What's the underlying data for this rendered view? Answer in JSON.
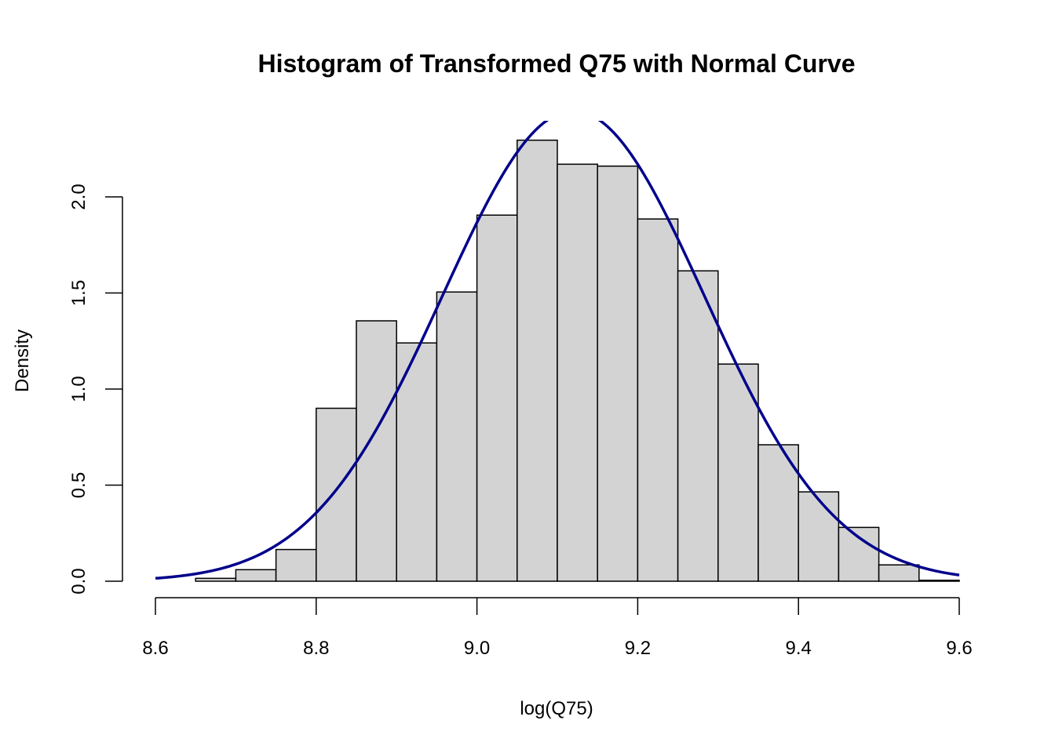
{
  "chart_data": {
    "type": "bar",
    "title": "Histogram of Transformed Q75 with Normal Curve",
    "xlabel": "log(Q75)",
    "ylabel": "Density",
    "xlim": [
      8.6,
      9.6
    ],
    "ylim": [
      0,
      2.0
    ],
    "x_ticks": [
      "8.6",
      "8.8",
      "9.0",
      "9.2",
      "9.4",
      "9.6"
    ],
    "y_ticks": [
      "0.0",
      "0.5",
      "1.0",
      "1.5",
      "2.0"
    ],
    "bin_width": 0.05,
    "bins": [
      {
        "start": 8.6,
        "end": 8.65,
        "density": 0.0
      },
      {
        "start": 8.65,
        "end": 8.7,
        "density": 0.015
      },
      {
        "start": 8.7,
        "end": 8.75,
        "density": 0.06
      },
      {
        "start": 8.75,
        "end": 8.8,
        "density": 0.165
      },
      {
        "start": 8.8,
        "end": 8.85,
        "density": 0.9
      },
      {
        "start": 8.85,
        "end": 8.9,
        "density": 1.355
      },
      {
        "start": 8.9,
        "end": 8.95,
        "density": 1.24
      },
      {
        "start": 8.95,
        "end": 9.0,
        "density": 1.505
      },
      {
        "start": 9.0,
        "end": 9.05,
        "density": 1.905
      },
      {
        "start": 9.05,
        "end": 9.1,
        "density": 2.295
      },
      {
        "start": 9.1,
        "end": 9.15,
        "density": 2.17
      },
      {
        "start": 9.15,
        "end": 9.2,
        "density": 2.16
      },
      {
        "start": 9.2,
        "end": 9.25,
        "density": 1.885
      },
      {
        "start": 9.25,
        "end": 9.3,
        "density": 1.615
      },
      {
        "start": 9.3,
        "end": 9.35,
        "density": 1.13
      },
      {
        "start": 9.35,
        "end": 9.4,
        "density": 0.71
      },
      {
        "start": 9.4,
        "end": 9.45,
        "density": 0.465
      },
      {
        "start": 9.45,
        "end": 9.5,
        "density": 0.28
      },
      {
        "start": 9.5,
        "end": 9.55,
        "density": 0.085
      },
      {
        "start": 9.55,
        "end": 9.6,
        "density": 0.005
      }
    ],
    "normal_curve": {
      "mean": 9.12,
      "sd": 0.163
    },
    "colors": {
      "bar_fill": "#d3d3d3",
      "bar_stroke": "#000000",
      "curve": "#00008b",
      "axis": "#000000",
      "text": "#000000",
      "background": "#ffffff"
    },
    "grid": false,
    "legend": "none"
  }
}
